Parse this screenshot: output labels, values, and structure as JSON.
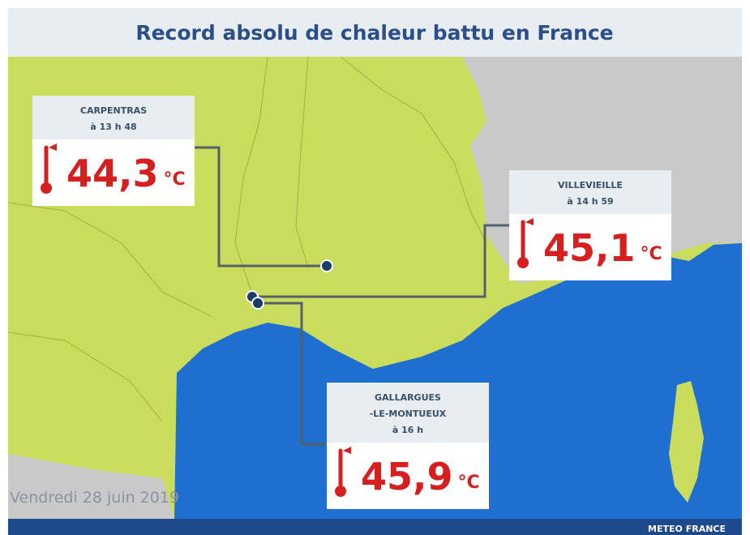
{
  "header": {
    "title": "Record absolu de chaleur battu en France"
  },
  "stations": [
    {
      "name_lines": [
        "CARPENTRAS"
      ],
      "time": "à 13 h 48",
      "temperature": "44,3",
      "unit": "°C"
    },
    {
      "name_lines": [
        "VILLEVIEILLE"
      ],
      "time": "à 14 h 59",
      "temperature": "45,1",
      "unit": "°C"
    },
    {
      "name_lines": [
        "GALLARGUES",
        "-LE-MONTUEUX"
      ],
      "time": "à 16 h",
      "temperature": "45,9",
      "unit": "°C"
    }
  ],
  "footer": {
    "date": "Vendredi 28 juin 2019",
    "brand": "METEO FRANCE"
  }
}
